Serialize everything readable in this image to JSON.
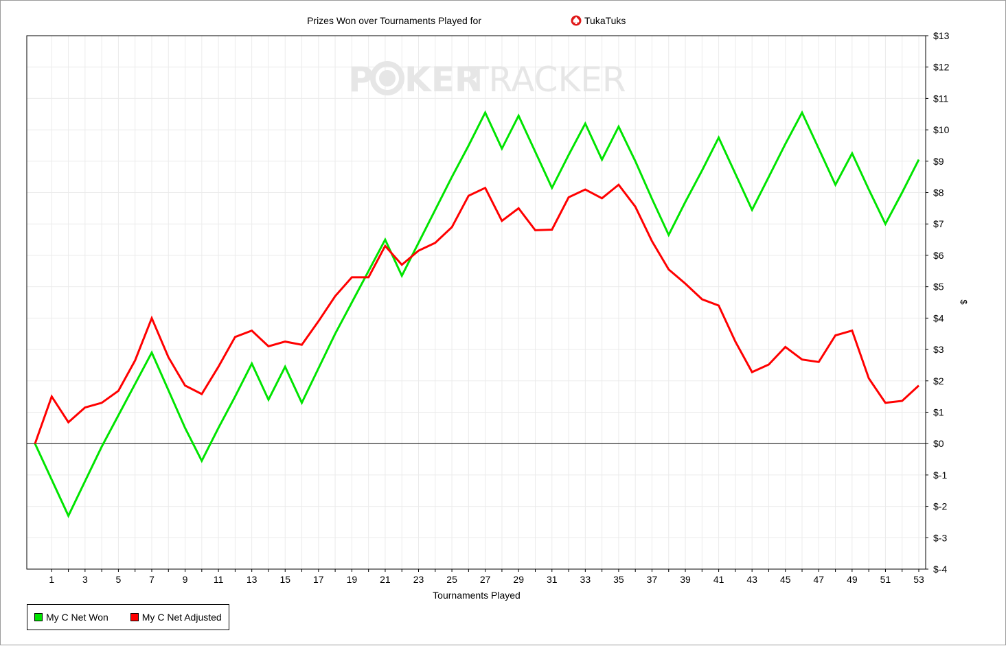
{
  "chart_data": {
    "type": "line",
    "title_prefix": "Prizes Won over Tournaments Played for",
    "player_name": "TukaTuks",
    "player_icon": "spade-chip-icon",
    "watermark_left": "P",
    "watermark_mid": "KER",
    "watermark_right": "TRACKER",
    "xlabel": "Tournaments Played",
    "ylabel": "$",
    "xlim": [
      0,
      53
    ],
    "ylim": [
      -4,
      13
    ],
    "x_ticks": [
      1,
      3,
      5,
      7,
      9,
      11,
      13,
      15,
      17,
      19,
      21,
      23,
      25,
      27,
      29,
      31,
      33,
      35,
      37,
      39,
      41,
      43,
      45,
      47,
      49,
      51,
      53
    ],
    "y_ticks": [
      -4,
      -3,
      -2,
      -1,
      0,
      1,
      2,
      3,
      4,
      5,
      6,
      7,
      8,
      9,
      10,
      11,
      12,
      13
    ],
    "y_tick_format": "$",
    "grid": true,
    "legend_position": "bottom-left",
    "series": [
      {
        "name": "My C Net Won",
        "color": "#00e400",
        "values": [
          0,
          -1.15,
          -2.3,
          -1.2,
          -0.1,
          0.9,
          1.9,
          2.9,
          1.7,
          0.5,
          -0.55,
          0.5,
          1.5,
          2.55,
          1.4,
          2.45,
          1.3,
          2.4,
          3.5,
          4.5,
          5.5,
          6.5,
          5.35,
          6.4,
          7.45,
          8.5,
          9.5,
          10.55,
          9.4,
          10.45,
          9.3,
          8.15,
          9.2,
          10.2,
          9.05,
          10.1,
          9.0,
          7.8,
          6.65,
          7.7,
          8.7,
          9.75,
          8.6,
          7.45,
          8.5,
          9.55,
          10.55,
          9.4,
          8.25,
          9.25,
          8.1,
          7.0,
          8.0,
          9.05
        ]
      },
      {
        "name": "My C Net Adjusted",
        "color": "#ff0000",
        "values": [
          0,
          1.5,
          0.68,
          1.15,
          1.3,
          1.68,
          2.65,
          4.0,
          2.75,
          1.85,
          1.58,
          2.45,
          3.4,
          3.6,
          3.1,
          3.25,
          3.15,
          3.9,
          4.7,
          5.3,
          5.3,
          6.3,
          5.7,
          6.15,
          6.4,
          6.9,
          7.9,
          8.15,
          7.1,
          7.5,
          6.8,
          6.82,
          7.85,
          8.1,
          7.82,
          8.25,
          7.55,
          6.45,
          5.55,
          5.1,
          4.6,
          4.4,
          3.25,
          2.28,
          2.52,
          3.08,
          2.68,
          2.6,
          3.45,
          3.6,
          2.08,
          1.3,
          1.36,
          1.85
        ]
      }
    ]
  }
}
